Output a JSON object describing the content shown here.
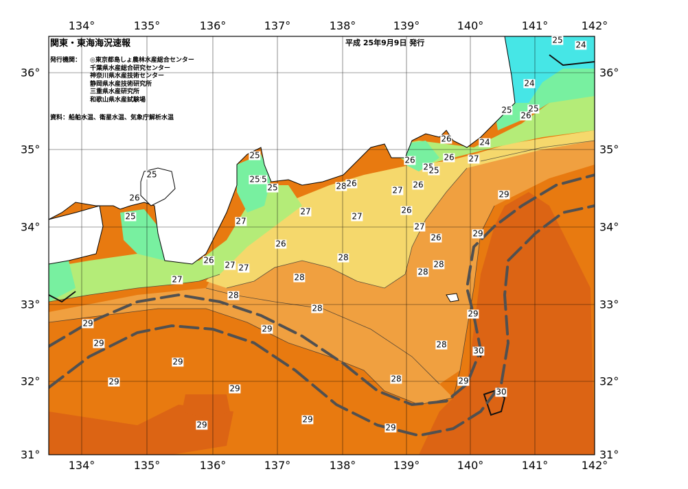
{
  "header": {
    "title": "関東・東海海況速報",
    "issued": "平成  25年9月9日  発行",
    "issuer_heading": "発行機関：",
    "issuers": [
      "◎東京都島しょ農林水産総合センター",
      "千葉県水産総合研究センター",
      "神奈川県水産技術センター",
      "静岡県水産技術研究所",
      "三重県水産研究所",
      "和歌山県水産試験場"
    ],
    "source": "資料：船舶水温、衛星水温、気象庁解析水温"
  },
  "axes": {
    "longitudes": [
      "134°",
      "135°",
      "136°",
      "137°",
      "138°",
      "139°",
      "140°",
      "141°",
      "142°"
    ],
    "latitudes": [
      "36°",
      "35°",
      "34°",
      "33°",
      "32°",
      "31°"
    ]
  },
  "colors": {
    "t24": "#46e6e6",
    "t25": "#78f0a0",
    "t26": "#b4ec78",
    "t27": "#f5d86c",
    "t28": "#f0a040",
    "t29": "#e87a10",
    "t30": "#dc6414",
    "land": "#ffffff",
    "kuroshio": "#505050"
  },
  "isotherm_labels": [
    {
      "t": "25"
    },
    {
      "t": "24"
    },
    {
      "t": "24"
    },
    {
      "t": "25"
    },
    {
      "t": "26"
    },
    {
      "t": "25"
    },
    {
      "t": "24"
    },
    {
      "t": "26"
    },
    {
      "t": "26"
    },
    {
      "t": "27"
    },
    {
      "t": "26"
    },
    {
      "t": "25"
    },
    {
      "t": "25"
    },
    {
      "t": "25"
    },
    {
      "t": "26"
    },
    {
      "t": "25"
    },
    {
      "t": "25"
    },
    {
      "t": "25"
    },
    {
      "t": "25"
    },
    {
      "t": "25"
    },
    {
      "t": "28"
    },
    {
      "t": "26"
    },
    {
      "t": "27"
    },
    {
      "t": "26"
    },
    {
      "t": "26"
    },
    {
      "t": "27"
    },
    {
      "t": "26"
    },
    {
      "t": "27"
    },
    {
      "t": "27"
    },
    {
      "t": "26"
    },
    {
      "t": "26"
    },
    {
      "t": "27"
    },
    {
      "t": "27"
    },
    {
      "t": "27"
    },
    {
      "t": "28"
    },
    {
      "t": "28"
    },
    {
      "t": "28"
    },
    {
      "t": "28"
    },
    {
      "t": "28"
    },
    {
      "t": "28"
    },
    {
      "t": "28"
    },
    {
      "t": "28"
    },
    {
      "t": "29"
    },
    {
      "t": "29"
    },
    {
      "t": "29"
    },
    {
      "t": "29"
    },
    {
      "t": "29"
    },
    {
      "t": "29"
    },
    {
      "t": "29"
    },
    {
      "t": "29"
    },
    {
      "t": "29"
    },
    {
      "t": "29"
    },
    {
      "t": "29"
    },
    {
      "t": "30"
    },
    {
      "t": "30"
    },
    {
      "t": "27"
    },
    {
      "t": "29"
    },
    {
      "t": "29"
    }
  ]
}
